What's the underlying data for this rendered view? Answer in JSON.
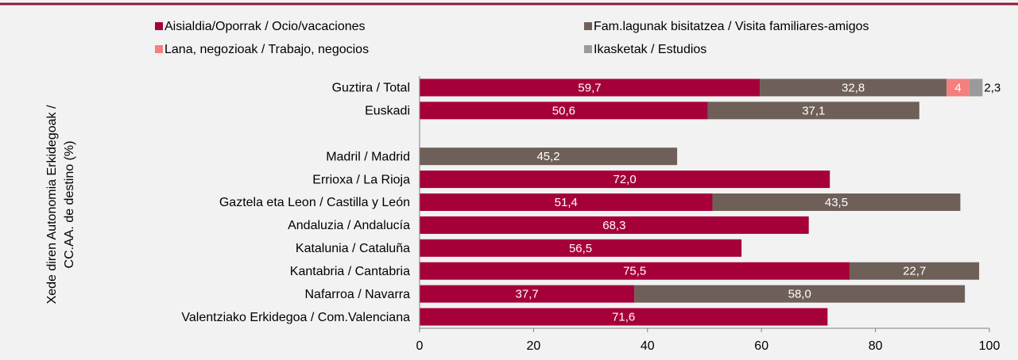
{
  "chart_data": {
    "type": "stacked_barh",
    "ylabel": [
      "Xede diren Autonomia Erkidegoak /",
      "CC.AA. de destino (%)"
    ],
    "categories": [
      "Guztira / Total",
      "Euskadi",
      null,
      "Madril / Madrid",
      "Errioxa / La Rioja",
      "Gaztela eta Leon / Castilla y León",
      "Andaluzia / Andalucía",
      "Katalunia / Cataluña",
      "Kantabria / Cantabria",
      "Nafarroa / Navarra",
      "Valentziako Erkidegoa / Com.Valenciana"
    ],
    "series": [
      {
        "name": "Aisialdia/Oporrak / Ocio/vacaciones",
        "color": "#a6003a",
        "values": [
          59.7,
          50.6,
          null,
          null,
          72.0,
          51.4,
          68.3,
          56.5,
          75.5,
          37.7,
          71.6
        ],
        "value_labels": [
          "59,7",
          "50,6",
          null,
          null,
          "72,0",
          "51,4",
          "68,3",
          "56,5",
          "75,5",
          "37,7",
          "71,6"
        ]
      },
      {
        "name": "Fam.lagunak bisitatzea / Visita familiares-amigos",
        "color": "#6e6058",
        "values": [
          32.8,
          37.1,
          null,
          45.2,
          null,
          43.5,
          null,
          null,
          22.7,
          58.0,
          null
        ],
        "value_labels": [
          "32,8",
          "37,1",
          null,
          "45,2",
          null,
          "43,5",
          null,
          null,
          "22,7",
          "58,0",
          null
        ]
      },
      {
        "name": "Lana, negozioak / Trabajo, negocios",
        "color": "#f47f7f",
        "values": [
          4,
          null,
          null,
          null,
          null,
          null,
          null,
          null,
          null,
          null,
          null
        ],
        "value_labels": [
          "4",
          null,
          null,
          null,
          null,
          null,
          null,
          null,
          null,
          null,
          null
        ]
      },
      {
        "name": "Ikasketak / Estudios",
        "color": "#9a9a9a",
        "values": [
          2.3,
          null,
          null,
          null,
          null,
          null,
          null,
          null,
          null,
          null,
          null
        ],
        "value_labels": [
          "2,3",
          null,
          null,
          null,
          null,
          null,
          null,
          null,
          null,
          null,
          null
        ]
      }
    ],
    "xlim": [
      0,
      100
    ],
    "xticks": [
      0,
      20,
      40,
      60,
      80,
      100
    ]
  }
}
